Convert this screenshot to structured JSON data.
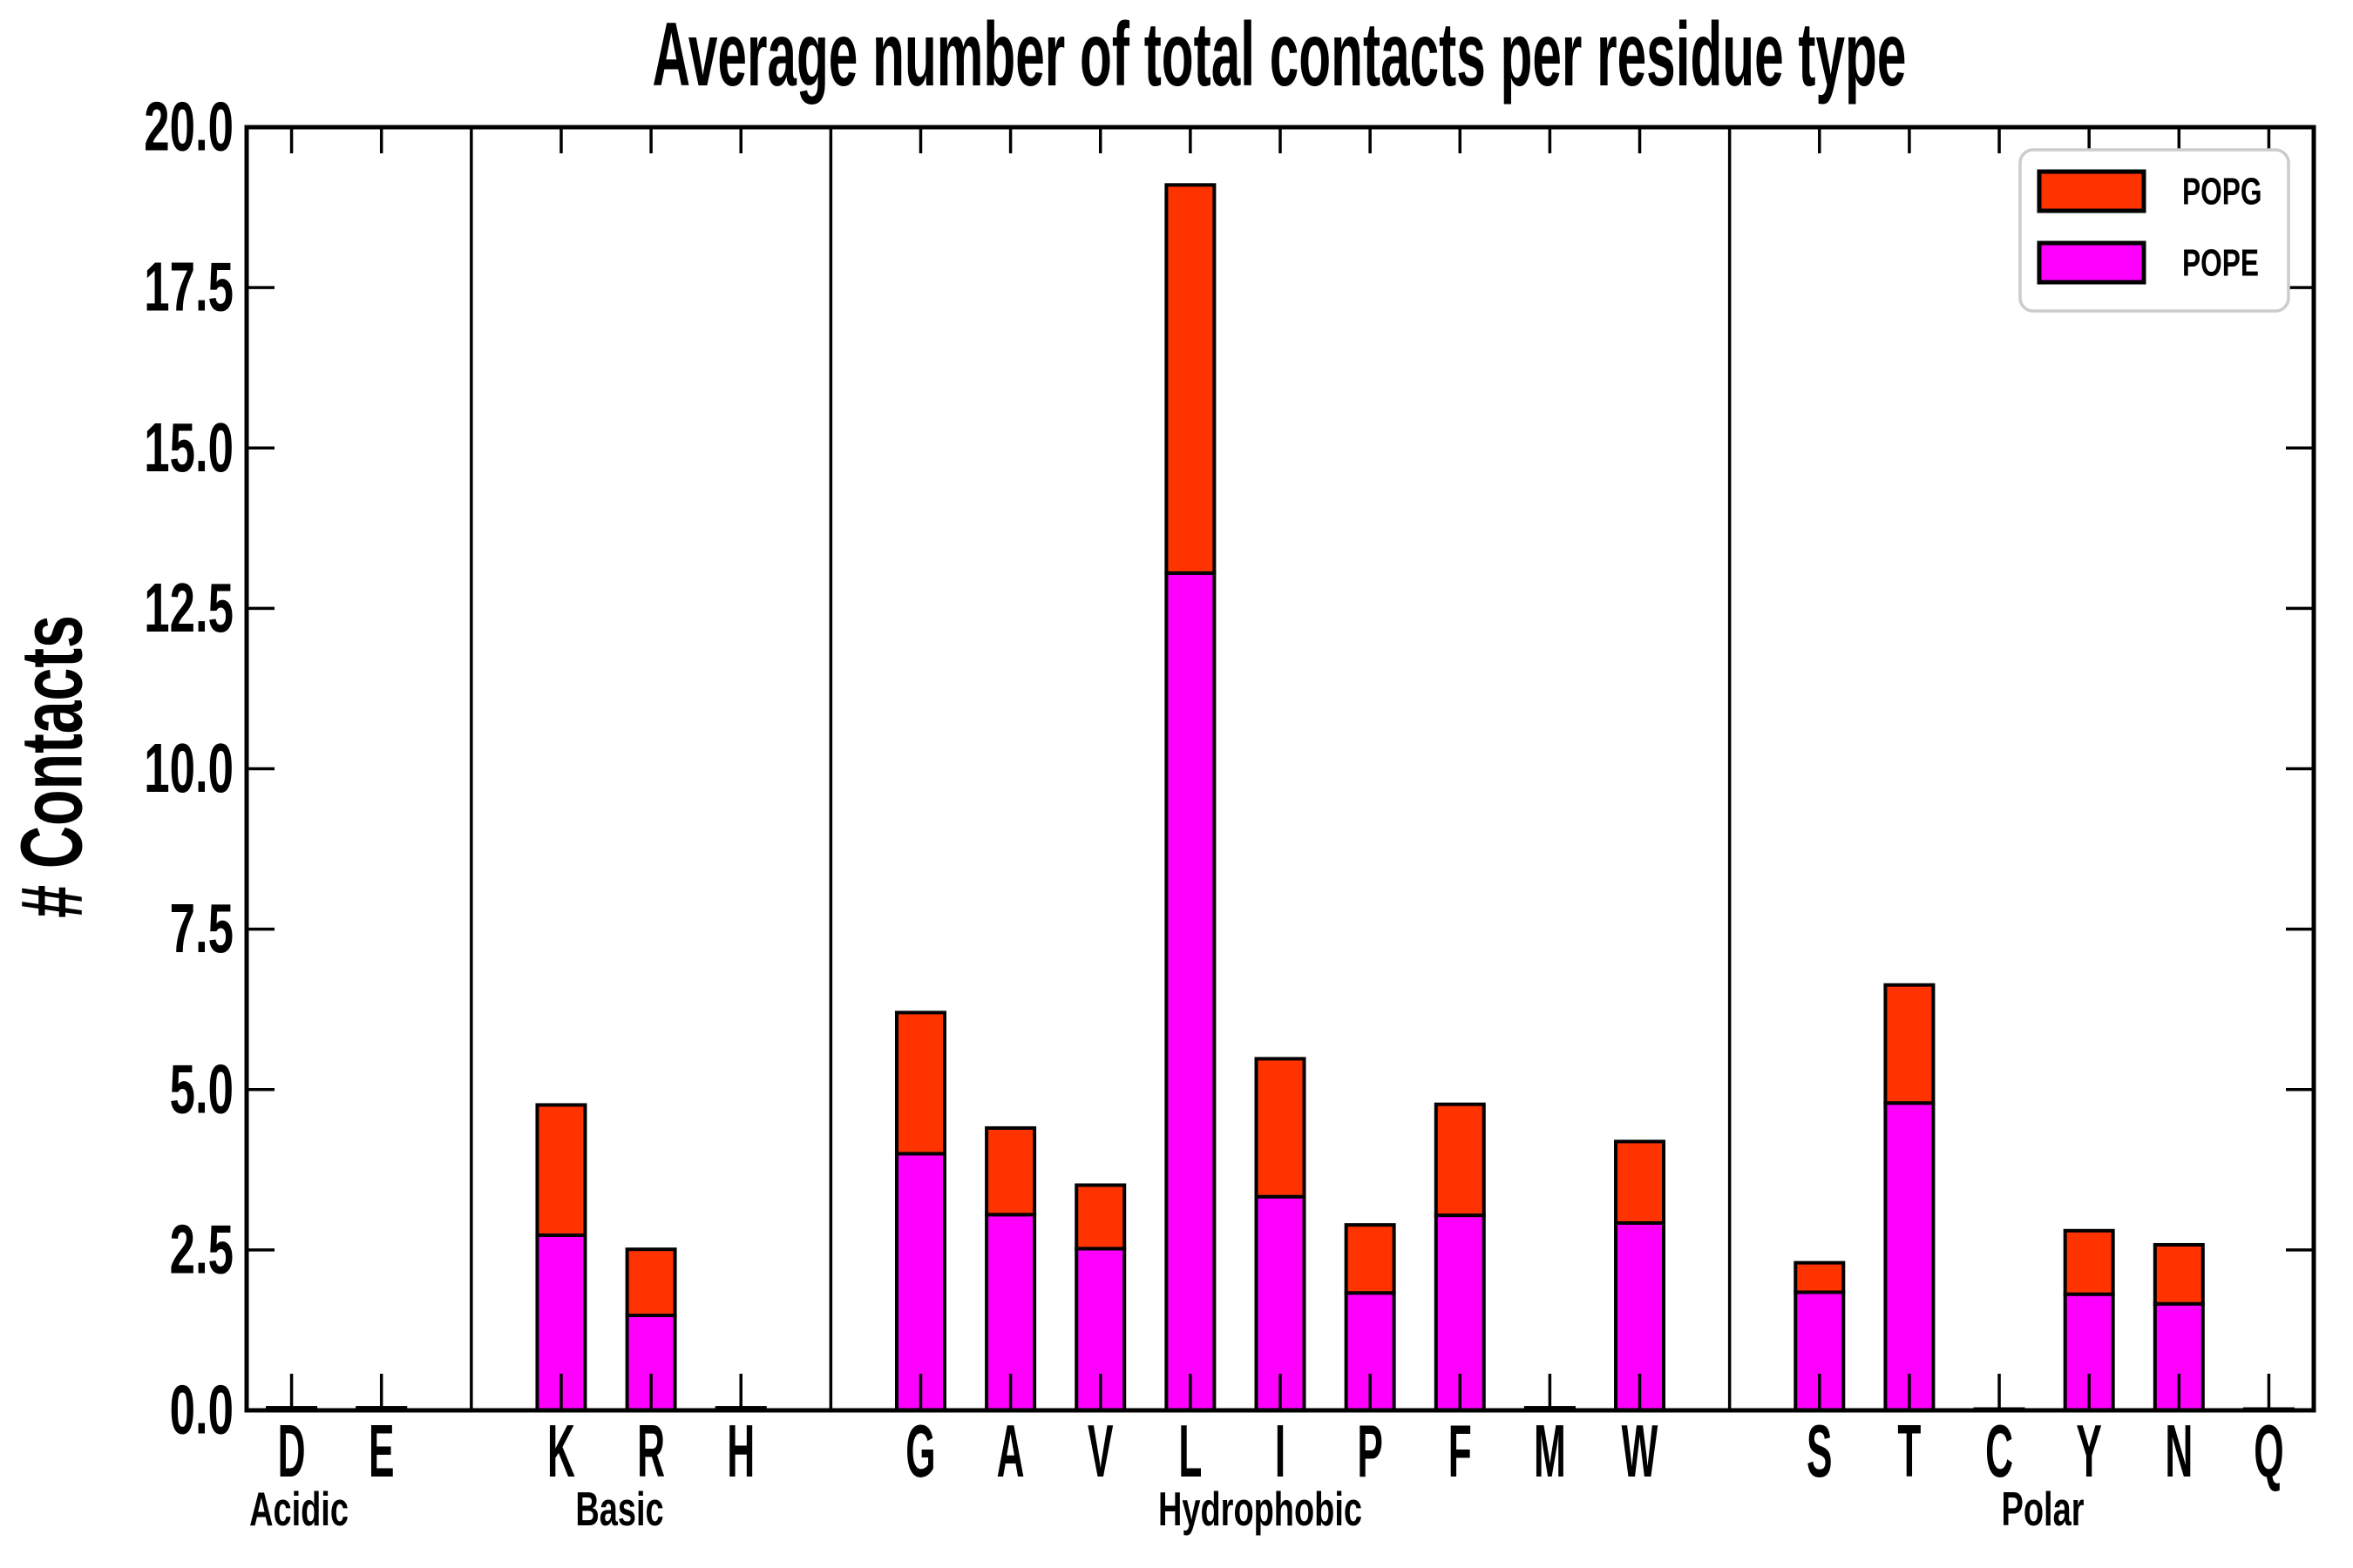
{
  "title": "Average number of total contacts per residue type",
  "y_axis": {
    "label": "# Contacts",
    "tick_labels": [
      "0.0",
      "2.5",
      "5.0",
      "7.5",
      "10.0",
      "12.5",
      "15.0",
      "17.5",
      "20.0"
    ],
    "min": 0,
    "max": 20
  },
  "legend": {
    "position": "upper right",
    "items": [
      {
        "label": "POPG",
        "color": "#ff3300"
      },
      {
        "label": "POPE",
        "color": "#ff00ff"
      }
    ]
  },
  "chart_data": {
    "type": "bar",
    "stacked": true,
    "title": "Average number of total contacts per residue type",
    "xlabel": "",
    "ylabel": "# Contacts",
    "ylim": [
      0,
      20
    ],
    "grid": false,
    "legend_position": "upper right",
    "bar_outline_color": "#000000",
    "categories": [
      "D",
      "E",
      "K",
      "R",
      "H",
      "G",
      "A",
      "V",
      "L",
      "I",
      "P",
      "F",
      "M",
      "W",
      "S",
      "T",
      "C",
      "Y",
      "N",
      "Q"
    ],
    "groups": [
      {
        "label": "Acidic",
        "residues": [
          "D",
          "E"
        ]
      },
      {
        "label": "Basic",
        "residues": [
          "K",
          "R",
          "H"
        ]
      },
      {
        "label": "Hydrophobic",
        "residues": [
          "G",
          "A",
          "V",
          "L",
          "I",
          "P",
          "F",
          "M",
          "W"
        ]
      },
      {
        "label": "Polar",
        "residues": [
          "S",
          "T",
          "C",
          "Y",
          "N",
          "Q"
        ]
      }
    ],
    "series": [
      {
        "name": "POPE",
        "color": "#ff00ff",
        "values": [
          0.02,
          0.02,
          2.73,
          1.48,
          0.02,
          4.0,
          3.05,
          2.52,
          13.05,
          3.33,
          1.83,
          3.04,
          0.02,
          2.92,
          1.84,
          4.79,
          0.01,
          1.81,
          1.66,
          0.01
        ]
      },
      {
        "name": "POPG",
        "color": "#ff3300",
        "values": [
          0.02,
          0.02,
          2.03,
          1.03,
          0.02,
          2.2,
          1.35,
          0.99,
          6.05,
          2.15,
          1.06,
          1.73,
          0.02,
          1.27,
          0.46,
          1.84,
          0.01,
          0.99,
          0.92,
          0.01
        ]
      }
    ],
    "totals": [
      0.04,
      0.04,
      4.76,
      2.51,
      0.04,
      6.2,
      4.4,
      3.51,
      19.1,
      5.48,
      2.89,
      4.77,
      0.04,
      4.19,
      2.3,
      6.63,
      0.02,
      2.8,
      2.58,
      0.02
    ]
  }
}
